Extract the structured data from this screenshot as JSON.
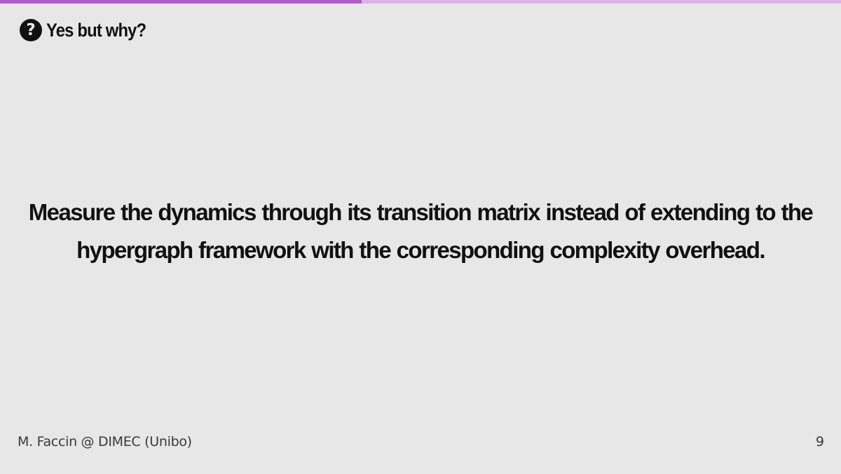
{
  "progress": {
    "fraction": 0.43,
    "fill_color": "#b05fc8",
    "track_color": "#ddb2e6"
  },
  "header": {
    "icon": "question-circle-icon",
    "icon_glyph": "?",
    "title": "Yes but why?"
  },
  "main": {
    "statement": "Measure the dynamics through its transition matrix instead of extending to the hypergraph framework with the corresponding complexity overhead."
  },
  "footer": {
    "author": "M. Faccin @ DIMEC (Unibo)",
    "page_number": "9"
  }
}
